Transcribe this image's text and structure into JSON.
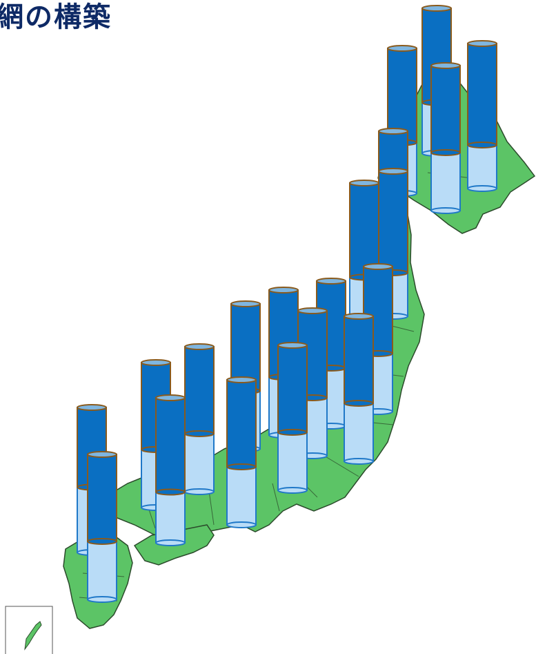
{
  "page": {
    "title": "網の構築"
  },
  "colors": {
    "land": "#5cc466",
    "land_stroke": "#2b4a2b",
    "cylinder_top": "#0a6fc2",
    "cylinder_bottom": "#b9dcf7",
    "cylinder_outline": "#8a5a1c",
    "cylinder_bottom_outline": "#1f78c8",
    "lid": "#7fb6e0"
  },
  "map": {
    "region": "Japan",
    "inset_present": true
  },
  "chart_data": {
    "type": "bar",
    "style": "stacked 3D cylinders on map",
    "categories": [
      "",
      "",
      "",
      "",
      "",
      "",
      "",
      "",
      "",
      "",
      "",
      "",
      "",
      "",
      "",
      "",
      "",
      "",
      "",
      ""
    ],
    "series": [
      {
        "values": [
          65,
          65,
          70,
          60,
          70,
          65,
          60,
          60,
          60,
          60,
          60,
          60,
          60,
          60,
          55,
          65,
          60,
          60,
          60,
          60
        ]
      },
      {
        "values": [
          100,
          100,
          100,
          100,
          100,
          100,
          100,
          100,
          100,
          100,
          100,
          100,
          100,
          100,
          100,
          100,
          100,
          100,
          100,
          100
        ]
      }
    ]
  }
}
